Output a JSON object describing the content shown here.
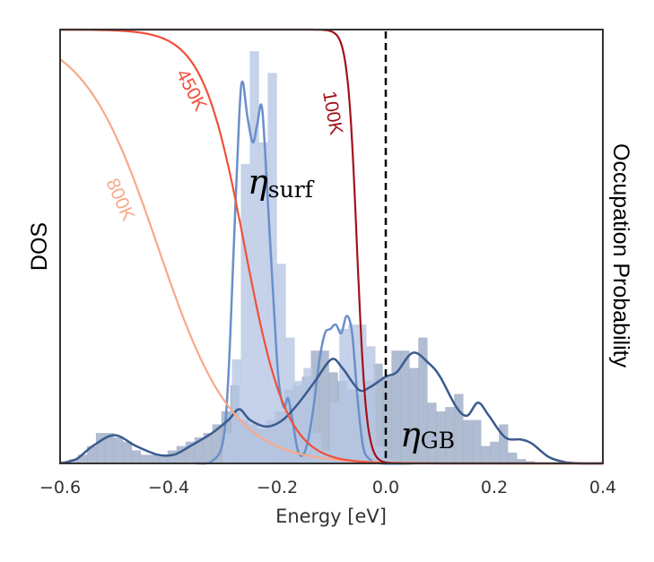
{
  "chart_data": {
    "type": "bar",
    "title": "",
    "xlabel": "Energy [eV]",
    "ylabel_left": "DOS",
    "ylabel_right": "Occupation Probability",
    "xlim": [
      -0.6,
      0.4
    ],
    "ylim_left": [
      0,
      1
    ],
    "ylim_right": [
      0,
      1
    ],
    "xticks": [
      "−0.6",
      "−0.4",
      "−0.2",
      "0.0",
      "0.2",
      "0.4"
    ],
    "xtick_values": [
      -0.6,
      -0.4,
      -0.2,
      0.0,
      0.2,
      0.4
    ],
    "grid": false,
    "fermi_level_eV": 0.0,
    "colors": {
      "surf_bar": "#b7c7e4",
      "surf_kde": "#6a8fca",
      "gb_bar": "#8d9fbd",
      "gb_kde": "#3b5b8f",
      "100K": "#a3111b",
      "450K": "#f0503a",
      "800K": "#f7a98a"
    },
    "histograms": [
      {
        "name": "ηsurf",
        "label_main": "η",
        "label_sub": "surf",
        "bin_start": -0.3,
        "bin_width": 0.0165,
        "values": [
          0.07,
          0.24,
          0.69,
          0.95,
          0.74,
          0.9,
          0.46,
          0.29,
          0.19,
          0.22,
          0.07,
          0.03,
          0.14,
          0.31,
          0.32,
          0.32,
          0.27,
          0.04,
          0.01
        ]
      },
      {
        "name": "ηGB",
        "label_main": "η",
        "label_sub": "GB",
        "bin_start": -0.6,
        "bin_width": 0.0165,
        "values": [
          0.005,
          0.01,
          0.02,
          0.04,
          0.07,
          0.07,
          0.06,
          0.05,
          0.03,
          0.02,
          0.02,
          0.02,
          0.03,
          0.04,
          0.05,
          0.06,
          0.07,
          0.09,
          0.12,
          0.18,
          0.1,
          0.09,
          0.08,
          0.1,
          0.12,
          0.17,
          0.18,
          0.2,
          0.26,
          0.26,
          0.21,
          0.19,
          0.17,
          0.16,
          0.19,
          0.23,
          0.2,
          0.26,
          0.26,
          0.22,
          0.29,
          0.14,
          0.12,
          0.13,
          0.16,
          0.1,
          0.1,
          0.04,
          0.05,
          0.09,
          0.025,
          0.01,
          0.005
        ]
      }
    ],
    "kde": [
      {
        "of": "ηsurf",
        "x": [
          -0.35,
          -0.32,
          -0.3,
          -0.29,
          -0.28,
          -0.27,
          -0.264,
          -0.255,
          -0.245,
          -0.237,
          -0.228,
          -0.218,
          -0.208,
          -0.198,
          -0.188,
          -0.18,
          -0.172,
          -0.162,
          -0.152,
          -0.142,
          -0.132,
          -0.122,
          -0.112,
          -0.102,
          -0.092,
          -0.082,
          -0.072,
          -0.062,
          -0.052,
          -0.042,
          -0.03,
          -0.01,
          0.05
        ],
        "y": [
          0,
          0.005,
          0.05,
          0.2,
          0.5,
          0.8,
          0.88,
          0.8,
          0.74,
          0.78,
          0.82,
          0.62,
          0.4,
          0.2,
          0.13,
          0.15,
          0.1,
          0.03,
          0.02,
          0.06,
          0.14,
          0.24,
          0.3,
          0.31,
          0.32,
          0.3,
          0.34,
          0.3,
          0.15,
          0.04,
          0.01,
          0,
          0
        ]
      },
      {
        "of": "ηGB",
        "x": [
          -0.6,
          -0.57,
          -0.54,
          -0.5,
          -0.46,
          -0.42,
          -0.39,
          -0.36,
          -0.32,
          -0.29,
          -0.27,
          -0.25,
          -0.22,
          -0.19,
          -0.16,
          -0.13,
          -0.1,
          -0.08,
          -0.05,
          -0.03,
          0.0,
          0.02,
          0.05,
          0.08,
          0.1,
          0.13,
          0.15,
          0.17,
          0.19,
          0.22,
          0.25,
          0.27,
          0.3,
          0.33,
          0.36,
          0.4
        ],
        "y": [
          0,
          0.01,
          0.04,
          0.065,
          0.04,
          0.02,
          0.02,
          0.04,
          0.07,
          0.1,
          0.125,
          0.1,
          0.085,
          0.1,
          0.14,
          0.19,
          0.24,
          0.22,
          0.17,
          0.175,
          0.2,
          0.21,
          0.255,
          0.23,
          0.2,
          0.13,
          0.11,
          0.14,
          0.11,
          0.06,
          0.055,
          0.045,
          0.015,
          0.003,
          0,
          0
        ]
      }
    ],
    "occupation_curves": [
      {
        "name": "100K",
        "temperature_K": 100,
        "midpoint_eV": -0.053
      },
      {
        "name": "450K",
        "temperature_K": 450,
        "midpoint_eV": -0.26
      },
      {
        "name": "800K",
        "temperature_K": 800,
        "midpoint_eV": -0.42
      }
    ]
  }
}
